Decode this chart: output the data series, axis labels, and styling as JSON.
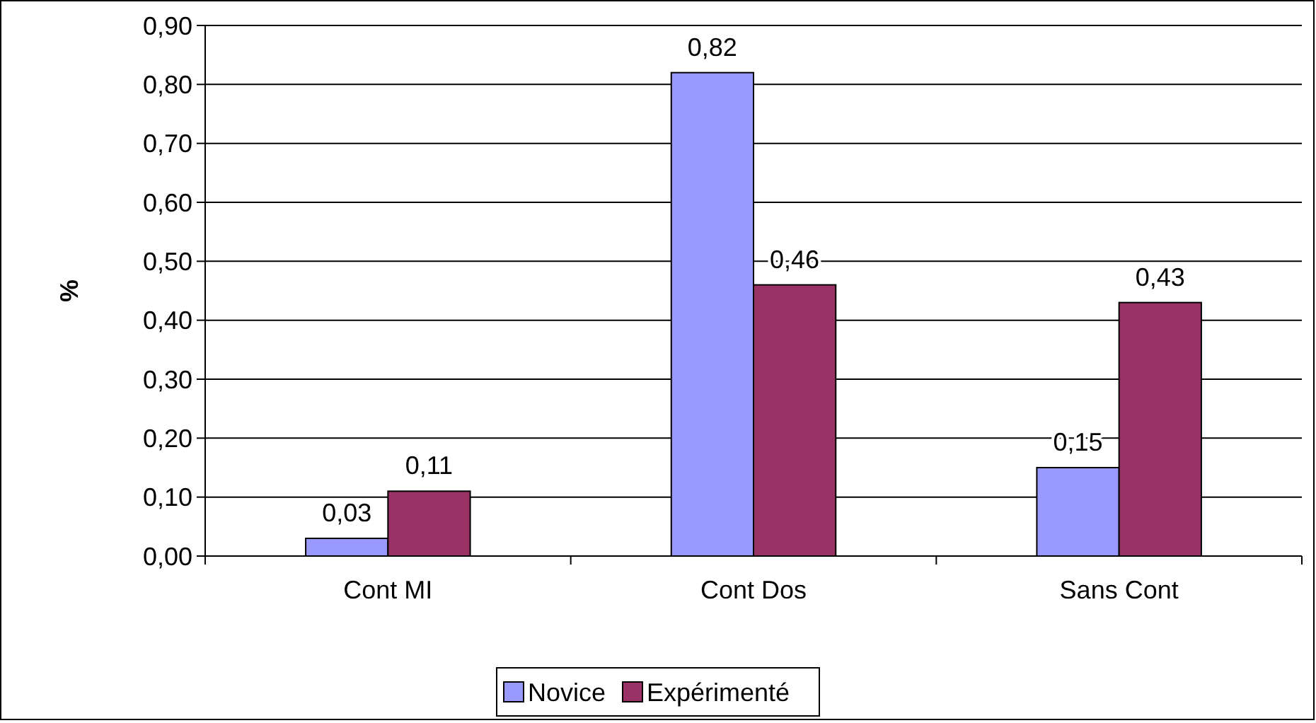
{
  "chart_data": {
    "type": "bar",
    "ylabel": "%",
    "categories": [
      "Cont MI",
      "Cont Dos",
      "Sans Cont"
    ],
    "series": [
      {
        "name": "Novice",
        "color": "#9999ff",
        "values": [
          0.03,
          0.82,
          0.15
        ],
        "value_labels": [
          "0,03",
          "0,82",
          "0,15"
        ]
      },
      {
        "name": "Expérimenté",
        "color": "#993366",
        "values": [
          0.11,
          0.46,
          0.43
        ],
        "value_labels": [
          "0,11",
          "0,46",
          "0,43"
        ]
      }
    ],
    "ylim": [
      0,
      0.9
    ],
    "yticks": [
      {
        "value": 0,
        "label": "0,00"
      },
      {
        "value": 0.1,
        "label": "0,10"
      },
      {
        "value": 0.2,
        "label": "0,20"
      },
      {
        "value": 0.3,
        "label": "0,30"
      },
      {
        "value": 0.4,
        "label": "0,40"
      },
      {
        "value": 0.5,
        "label": "0,50"
      },
      {
        "value": 0.6,
        "label": "0,60"
      },
      {
        "value": 0.7,
        "label": "0,70"
      },
      {
        "value": 0.8,
        "label": "0,80"
      },
      {
        "value": 0.9,
        "label": "0,90"
      }
    ],
    "grid": "y",
    "legend": "bottom"
  }
}
